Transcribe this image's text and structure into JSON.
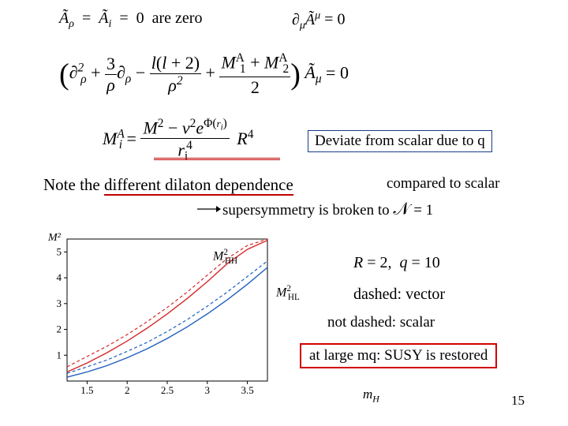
{
  "equations": {
    "line1_left": "Ãρ = Ãi = 0 are zero",
    "line1_right": "∂μÃμ = 0",
    "line2": "(∂²ρ + (3/ρ)∂ρ − l(l+2)/ρ² + (M₁ᴬ + M₂ᴬ)/2) Ãμ = 0",
    "line3": "Miᴬ = (M² − v²eΦ(ri)) / ri⁴ R⁴",
    "note": "Note the different dilaton dependence",
    "susy_broken": "supersymmetry is broken to 𝒩 = 1",
    "R_q": "R = 2, q = 10",
    "dashed_vector": "dashed: vector"
  },
  "callouts": {
    "deviate": "Deviate from scalar due to q",
    "compared": "compared to scalar",
    "not_dashed": "not dashed: scalar",
    "large_mq": "at large mq: SUSY is restored"
  },
  "chart": {
    "ylabel": "M²",
    "xlabel": "mH",
    "xlim": [
      1.25,
      3.75
    ],
    "ylim": [
      0,
      5.5
    ],
    "xticks": [
      1.5,
      2,
      2.5,
      3,
      3.5
    ],
    "yticks": [
      1,
      2,
      3,
      4,
      5
    ],
    "series_labels": {
      "hh": "M²HH",
      "hl": "M²HL"
    },
    "colors": {
      "red": "#d62728",
      "blue": "#1f5fbf",
      "axis": "#000000",
      "bg": "#ffffff"
    },
    "series": {
      "hh_solid": {
        "color": "#d62728",
        "dash": "none",
        "width": 1.4,
        "x": [
          1.25,
          1.5,
          1.75,
          2.0,
          2.25,
          2.5,
          2.75,
          3.0,
          3.25,
          3.5,
          3.75
        ],
        "y": [
          0.35,
          0.7,
          1.1,
          1.55,
          2.05,
          2.6,
          3.2,
          3.85,
          4.55,
          5.1,
          5.45
        ]
      },
      "hh_dashed": {
        "color": "#d62728",
        "dash": "4,3",
        "width": 1.2,
        "x": [
          1.25,
          1.5,
          1.75,
          2.0,
          2.25,
          2.5,
          2.75,
          3.0,
          3.25,
          3.5,
          3.75
        ],
        "y": [
          0.55,
          0.95,
          1.35,
          1.8,
          2.3,
          2.85,
          3.45,
          4.1,
          4.75,
          5.25,
          5.5
        ]
      },
      "hl_solid": {
        "color": "#1f5fbf",
        "dash": "none",
        "width": 1.4,
        "x": [
          1.25,
          1.5,
          1.75,
          2.0,
          2.25,
          2.5,
          2.75,
          3.0,
          3.25,
          3.5,
          3.75
        ],
        "y": [
          0.15,
          0.35,
          0.6,
          0.9,
          1.25,
          1.65,
          2.1,
          2.6,
          3.15,
          3.75,
          4.4
        ]
      },
      "hl_dashed": {
        "color": "#1f5fbf",
        "dash": "4,3",
        "width": 1.2,
        "x": [
          1.25,
          1.5,
          1.75,
          2.0,
          2.25,
          2.5,
          2.75,
          3.0,
          3.25,
          3.5,
          3.75
        ],
        "y": [
          0.3,
          0.55,
          0.82,
          1.15,
          1.5,
          1.92,
          2.38,
          2.9,
          3.45,
          4.05,
          4.65
        ]
      }
    }
  },
  "page_number": "15",
  "styling": {
    "body_bg": "#ffffff",
    "text_color": "#000000",
    "blue_border": "#1a3a8a",
    "red_border": "#d00000",
    "red_underline": "#c00000",
    "fontsize_main": 20,
    "fontsize_callout": 19
  }
}
